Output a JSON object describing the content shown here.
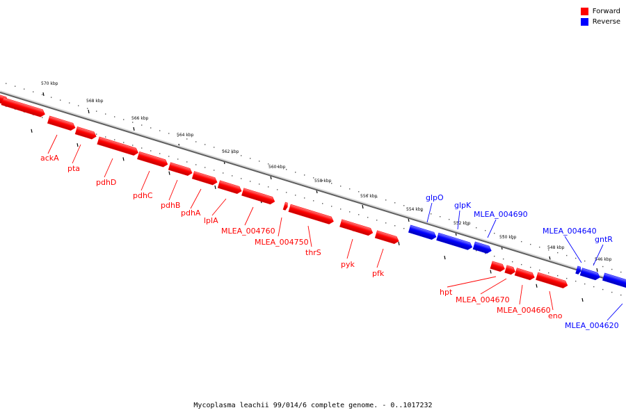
{
  "legend": {
    "forward": {
      "label": "Forward",
      "color": "#ff0000"
    },
    "reverse": {
      "label": "Reverse",
      "color": "#0000ff"
    }
  },
  "caption": "Mycoplasma leachii 99/014/6 complete genome. - 0..1017232",
  "ruler": {
    "tick_labels": [
      "570 kbp",
      "568 kbp",
      "566 kbp",
      "564 kbp",
      "562 kbp",
      "560 kbp",
      "558 kbp",
      "556 kbp",
      "554 kbp",
      "552 kbp",
      "550 kbp",
      "548 kbp",
      "546 kbp"
    ]
  },
  "genes": [
    {
      "name": "ackA",
      "strand": "forward"
    },
    {
      "name": "pta",
      "strand": "forward"
    },
    {
      "name": "pdhD",
      "strand": "forward"
    },
    {
      "name": "pdhC",
      "strand": "forward"
    },
    {
      "name": "pdhB",
      "strand": "forward"
    },
    {
      "name": "pdhA",
      "strand": "forward"
    },
    {
      "name": "lplA",
      "strand": "forward"
    },
    {
      "name": "MLEA_004760",
      "strand": "forward"
    },
    {
      "name": "MLEA_004750",
      "strand": "forward"
    },
    {
      "name": "thrS",
      "strand": "forward"
    },
    {
      "name": "pyk",
      "strand": "forward"
    },
    {
      "name": "pfk",
      "strand": "forward"
    },
    {
      "name": "glpO",
      "strand": "reverse"
    },
    {
      "name": "glpK",
      "strand": "reverse"
    },
    {
      "name": "MLEA_004690",
      "strand": "reverse"
    },
    {
      "name": "MLEA_004640",
      "strand": "reverse"
    },
    {
      "name": "gntR",
      "strand": "reverse"
    },
    {
      "name": "hpt",
      "strand": "forward"
    },
    {
      "name": "MLEA_004670",
      "strand": "forward"
    },
    {
      "name": "MLEA_004660",
      "strand": "forward"
    },
    {
      "name": "eno",
      "strand": "forward"
    },
    {
      "name": "MLEA_004620",
      "strand": "reverse"
    }
  ]
}
